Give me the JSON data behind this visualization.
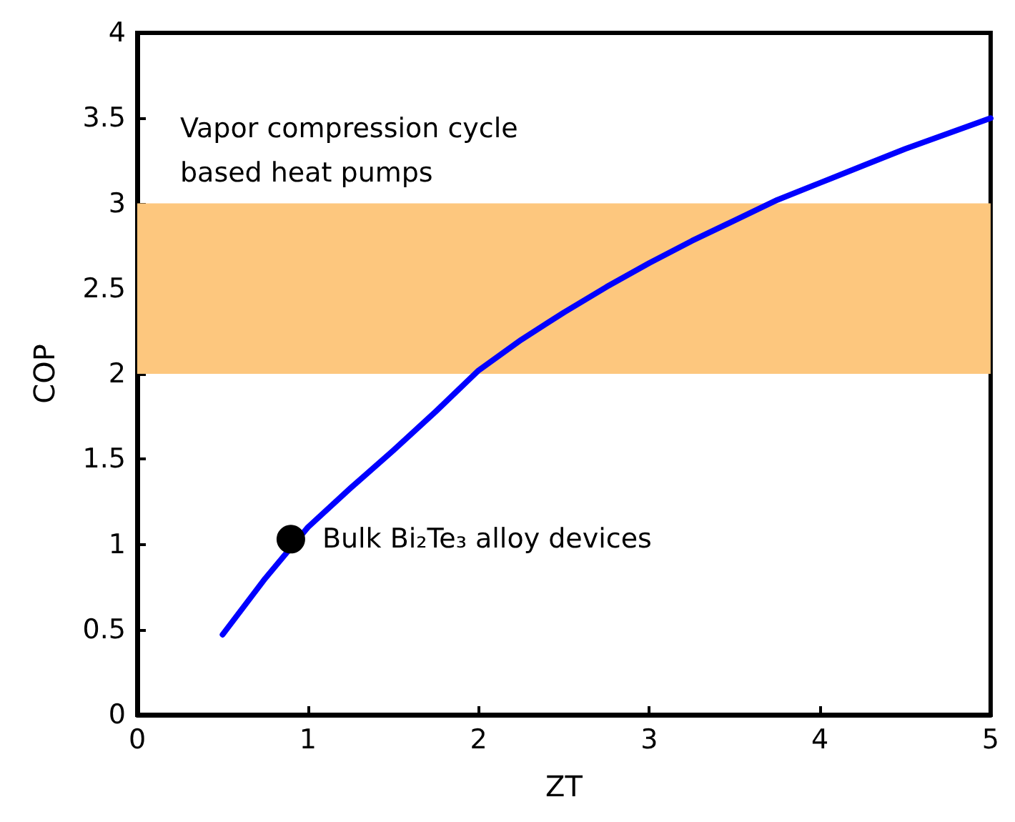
{
  "chart_data": {
    "type": "line",
    "xlabel": "ZT",
    "ylabel": "COP",
    "xlim": [
      0,
      5
    ],
    "ylim": [
      0,
      4
    ],
    "xticks": [
      0,
      1,
      2,
      3,
      4,
      5
    ],
    "yticks": [
      0,
      0.5,
      1,
      1.5,
      2,
      2.5,
      3,
      3.5,
      4
    ],
    "series": [
      {
        "color": "#0000ff",
        "x": [
          0.5,
          0.75,
          1,
          1.25,
          1.5,
          1.75,
          2,
          2.25,
          2.5,
          2.75,
          3,
          3.25,
          3.5,
          3.75,
          4,
          4.25,
          4.5,
          4.75,
          5
        ],
        "values": [
          0.47,
          0.8,
          1.1,
          1.33,
          1.55,
          1.78,
          2.02,
          2.2,
          2.36,
          2.51,
          2.65,
          2.78,
          2.9,
          3.02,
          3.12,
          3.22,
          3.32,
          3.41,
          3.5
        ]
      },
      {
        "type": "scatter",
        "color": "#000000",
        "x": [
          0.9
        ],
        "values": [
          1.03
        ],
        "marker": "circle"
      }
    ],
    "bands": [
      {
        "axis": "y",
        "from": 2,
        "to": 3,
        "label": "Vapor compression cycle based heat pumps",
        "color": "#fdc77e"
      }
    ],
    "annotations": [
      {
        "text": "Bulk Bi₂Te₃ alloy devices",
        "x": 0.9,
        "y": 1.03
      }
    ],
    "grid": false,
    "marker": "none",
    "line_style": "solid"
  }
}
